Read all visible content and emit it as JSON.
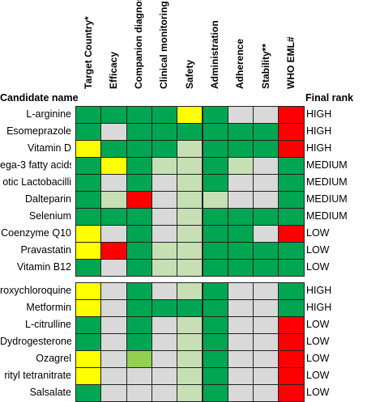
{
  "header": {
    "candidate_label": "Candidate name",
    "rank_label": "Final rank"
  },
  "columns": [
    "Target Country*",
    "Efficacy",
    "Companion diagnostics",
    "Clinical monitoring",
    "Safety",
    "Administration",
    "Adherence",
    "Stability**",
    "WHO EML#"
  ],
  "colors": {
    "G": "#00a651",
    "L": "#c6e0b4",
    "g": "#d9d9d9",
    "Y": "#ffff00",
    "R": "#ff0000",
    "M": "#92d050"
  },
  "groups": [
    {
      "rows": [
        {
          "name": "L-arginine",
          "cells": [
            "G",
            "G",
            "G",
            "G",
            "Y",
            "G",
            "g",
            "g",
            "R"
          ],
          "rank": "HIGH"
        },
        {
          "name": "Esomeprazole",
          "cells": [
            "G",
            "g",
            "G",
            "G",
            "G",
            "G",
            "G",
            "G",
            "R"
          ],
          "rank": "HIGH"
        },
        {
          "name": "Vitamin D",
          "cells": [
            "Y",
            "G",
            "G",
            "G",
            "L",
            "G",
            "G",
            "G",
            "R"
          ],
          "rank": "HIGH"
        },
        {
          "name": "ega-3 fatty acids",
          "cells": [
            "G",
            "Y",
            "G",
            "L",
            "L",
            "G",
            "L",
            "g",
            "G"
          ],
          "rank": "MEDIUM"
        },
        {
          "name": "otic Lactobacilli",
          "cells": [
            "G",
            "g",
            "G",
            "g",
            "L",
            "G",
            "g",
            "g",
            "G"
          ],
          "rank": "MEDIUM"
        },
        {
          "name": "Dalteparin",
          "cells": [
            "G",
            "L",
            "R",
            "g",
            "L",
            "L",
            "g",
            "g",
            "G"
          ],
          "rank": "MEDIUM"
        },
        {
          "name": "Selenium",
          "cells": [
            "G",
            "G",
            "G",
            "g",
            "L",
            "G",
            "G",
            "G",
            "G"
          ],
          "rank": "MEDIUM"
        },
        {
          "name": "Coenzyme Q10",
          "cells": [
            "Y",
            "g",
            "G",
            "g",
            "L",
            "G",
            "G",
            "g",
            "R"
          ],
          "rank": "LOW"
        },
        {
          "name": "Pravastatin",
          "cells": [
            "Y",
            "R",
            "G",
            "L",
            "L",
            "G",
            "G",
            "G",
            "G"
          ],
          "rank": "LOW"
        },
        {
          "name": "Vitamin B12",
          "cells": [
            "G",
            "g",
            "G",
            "L",
            "L",
            "G",
            "G",
            "G",
            "G"
          ],
          "rank": "LOW"
        }
      ]
    },
    {
      "rows": [
        {
          "name": "roxychloroquine",
          "cells": [
            "Y",
            "g",
            "G",
            "g",
            "L",
            "G",
            "g",
            "g",
            "G"
          ],
          "rank": "HIGH"
        },
        {
          "name": "Metformin",
          "cells": [
            "Y",
            "g",
            "G",
            "G",
            "G",
            "G",
            "g",
            "g",
            "G"
          ],
          "rank": "HIGH"
        },
        {
          "name": "L-citrulline",
          "cells": [
            "G",
            "g",
            "G",
            "g",
            "L",
            "G",
            "g",
            "g",
            "R"
          ],
          "rank": "LOW"
        },
        {
          "name": "Dydrogesterone",
          "cells": [
            "G",
            "g",
            "G",
            "g",
            "L",
            "G",
            "g",
            "g",
            "R"
          ],
          "rank": "LOW"
        },
        {
          "name": "Ozagrel",
          "cells": [
            "Y",
            "g",
            "M",
            "g",
            "L",
            "G",
            "g",
            "g",
            "R"
          ],
          "rank": "LOW"
        }
      ]
    },
    {
      "rows": [
        {
          "name": "rityl tetranitrate",
          "cells": [
            "Y",
            "g",
            "g",
            "g",
            "L",
            "G",
            "g",
            "g",
            "R"
          ],
          "rank": "LOW"
        },
        {
          "name": "Salsalate",
          "cells": [
            "G",
            "g",
            "g",
            "g",
            "L",
            "G",
            "g",
            "g",
            "R"
          ],
          "rank": "LOW"
        }
      ]
    }
  ]
}
